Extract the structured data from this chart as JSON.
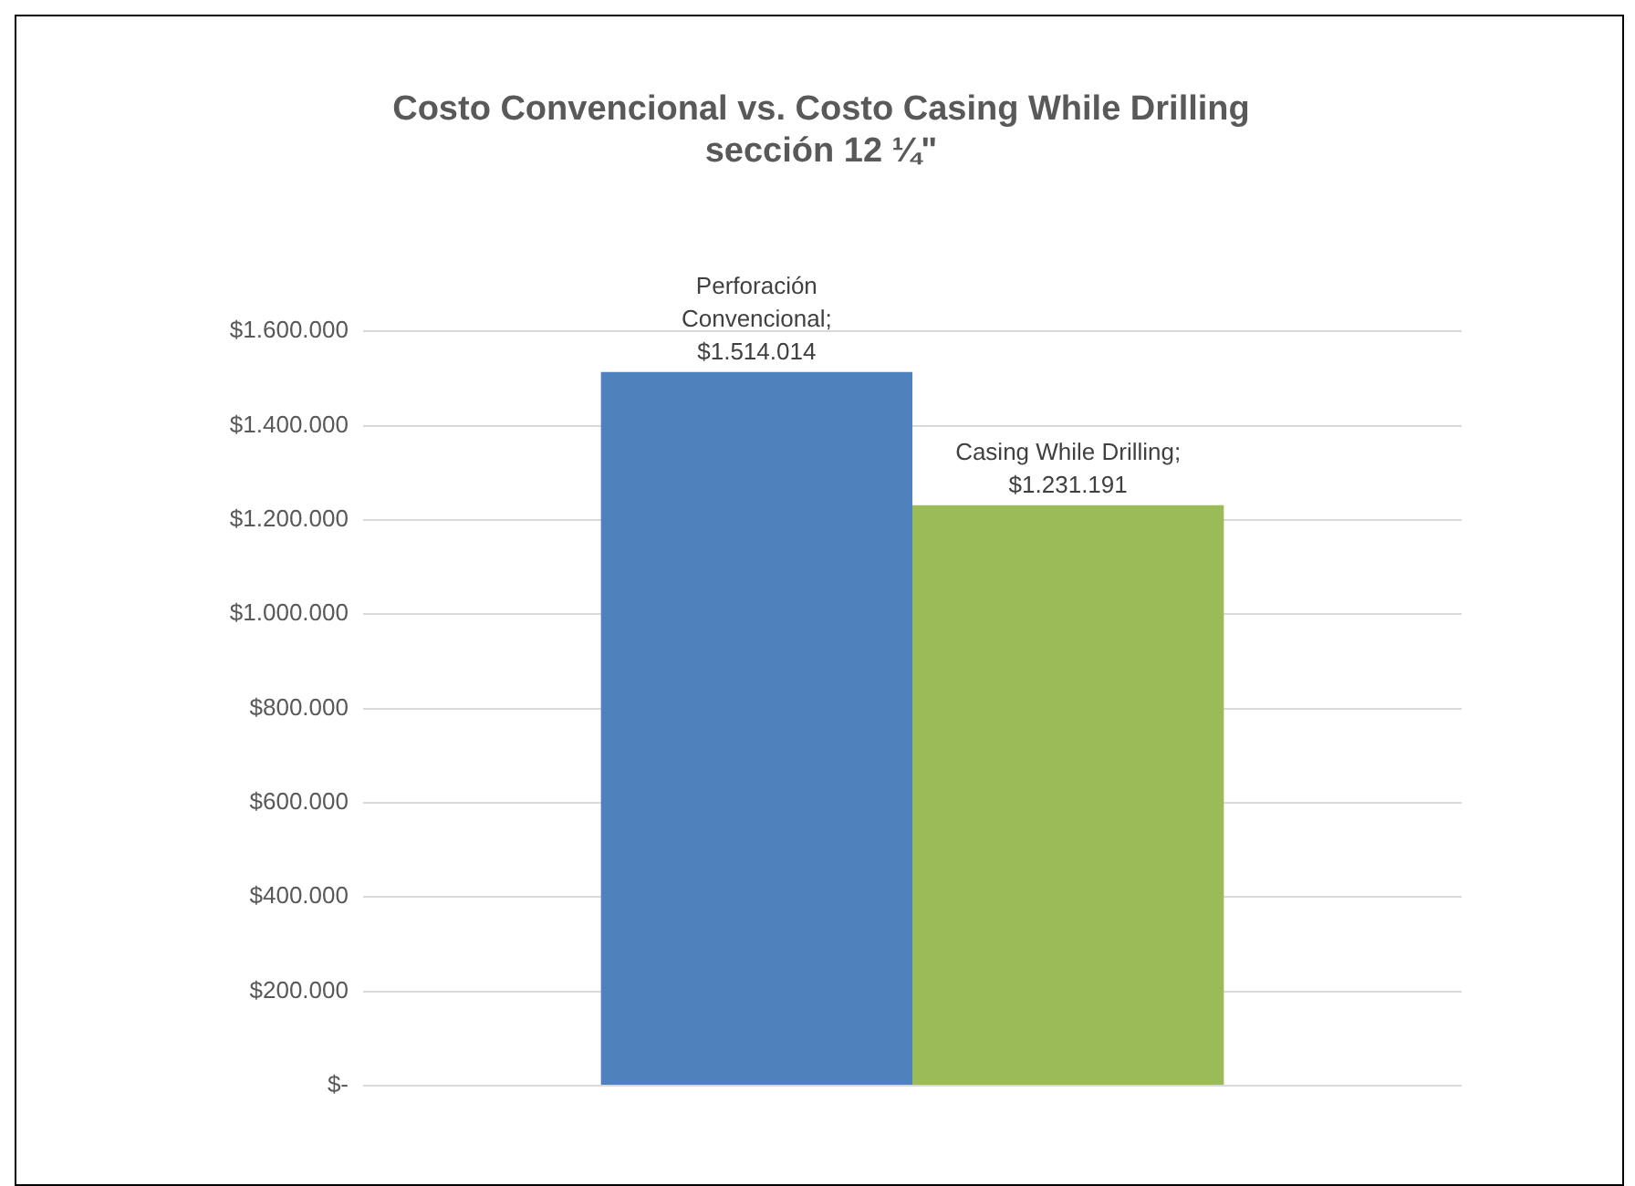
{
  "chart_data": {
    "type": "bar",
    "title": "Costo Convencional vs. Costo Casing While Drilling\nsección 12 ¼\"",
    "categories": [
      null
    ],
    "series": [
      {
        "color": "#4f81bd",
        "values": [
          1514014
        ],
        "value_labels": [
          "Perforación Convencional; $1.514.014"
        ]
      },
      {
        "color": "#9bbb59",
        "values": [
          1231191
        ],
        "value_labels": [
          "Casing While Drilling; $1.231.191"
        ]
      }
    ],
    "ylim": [
      0,
      1600000
    ],
    "yticks": [
      {
        "value": 0,
        "label": "$-"
      },
      {
        "value": 200000,
        "label": "$200.000"
      },
      {
        "value": 400000,
        "label": "$400.000"
      },
      {
        "value": 600000,
        "label": "$600.000"
      },
      {
        "value": 800000,
        "label": "$800.000"
      },
      {
        "value": 1000000,
        "label": "$1.000.000"
      },
      {
        "value": 1200000,
        "label": "$1.200.000"
      },
      {
        "value": 1400000,
        "label": "$1.400.000"
      },
      {
        "value": 1600000,
        "label": "$1.600.000"
      }
    ],
    "grid": "y",
    "legend": false
  }
}
